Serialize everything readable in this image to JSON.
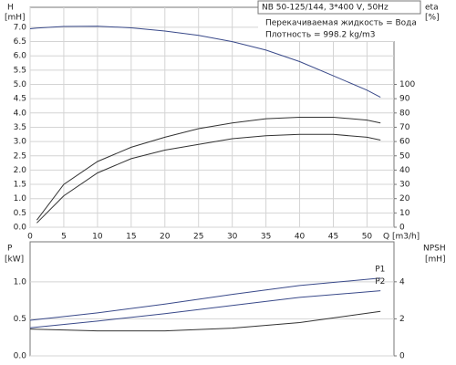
{
  "chart_data": [
    {
      "type": "line",
      "y_label": "H",
      "y_unit": "[mH]",
      "y2_label": "eta",
      "y2_unit": "[%]",
      "x_label": "Q [m3/h]",
      "notes": [
        "NB 50-125/144, 3*400 V, 50Hz",
        "Перекачиваемая жидкость = Вода",
        "Плотность = 998.2 kg/m3"
      ],
      "x": [
        0,
        1,
        5,
        10,
        15,
        20,
        25,
        30,
        35,
        40,
        45,
        50,
        52
      ],
      "series": [
        {
          "color": "#3a4a8a",
          "values": [
            6.95,
            6.97,
            7.03,
            7.04,
            6.98,
            6.87,
            6.72,
            6.5,
            6.2,
            5.8,
            5.3,
            4.8,
            4.55
          ]
        },
        {
          "color": "#333333",
          "axis": "y2",
          "values": [
            null,
            5,
            30,
            46,
            56,
            63,
            69,
            73,
            76,
            77,
            77,
            75,
            73
          ]
        },
        {
          "color": "#333333",
          "axis": "y2",
          "values": [
            null,
            3,
            22,
            38,
            48,
            54,
            58,
            62,
            64,
            65,
            65,
            63,
            61
          ]
        }
      ],
      "xlim": [
        0,
        54
      ],
      "xticks": [
        0,
        5,
        10,
        15,
        20,
        25,
        30,
        35,
        40,
        45,
        50
      ],
      "ylim": [
        0,
        7.7
      ],
      "yticks": [
        {
          "value": 0,
          "label": "0.0"
        },
        0.5,
        {
          "value": 1,
          "label": "1.0"
        },
        1.5,
        {
          "value": 2,
          "label": "2.0"
        },
        2.5,
        {
          "value": 3,
          "label": "3.0"
        },
        3.5,
        {
          "value": 4,
          "label": "4.0"
        },
        4.5,
        {
          "value": 5,
          "label": "5.0"
        },
        5.5,
        {
          "value": 6,
          "label": "6.0"
        },
        6.5,
        {
          "value": 7,
          "label": "7.0"
        }
      ],
      "y2lim": [
        0,
        154
      ],
      "y2ticks": [
        0,
        10,
        20,
        30,
        40,
        50,
        60,
        70,
        80,
        90,
        100
      ],
      "grid": true
    },
    {
      "type": "line",
      "y_label": "P",
      "y_unit": "[kW]",
      "y2_label": "NPSH",
      "y2_unit": "[mH]",
      "x": [
        0,
        10,
        20,
        30,
        40,
        52
      ],
      "series": [
        {
          "name": "P1",
          "color": "#3a4a8a",
          "values": [
            0.48,
            0.58,
            0.7,
            0.83,
            0.95,
            1.05
          ]
        },
        {
          "name": "P2",
          "color": "#3a4a8a",
          "values": [
            0.38,
            0.47,
            0.57,
            0.68,
            0.79,
            0.88
          ]
        },
        {
          "color": "#333333",
          "axis": "y2",
          "values": [
            1.45,
            1.35,
            1.35,
            1.5,
            1.8,
            2.4
          ]
        }
      ],
      "xlim": [
        0,
        54
      ],
      "ylim": [
        0,
        1.54
      ],
      "yticks": [
        {
          "value": 0,
          "label": "0.0"
        },
        0.5,
        {
          "value": 1,
          "label": "1.0"
        }
      ],
      "y2lim": [
        0,
        6.16
      ],
      "y2ticks": [
        0,
        2,
        4
      ],
      "grid": true
    }
  ]
}
